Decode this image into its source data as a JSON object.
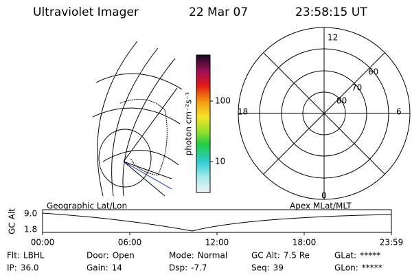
{
  "header": {
    "instrument": "Ultraviolet Imager",
    "date": "22 Mar 07",
    "time": "23:58:15 UT"
  },
  "colorbar": {
    "label": "photon cm⁻²s⁻¹",
    "ticks": [
      "100",
      "10"
    ]
  },
  "polar": {
    "mlt_labels": [
      "12",
      "18",
      "6",
      "0"
    ],
    "mlat_labels": [
      "60",
      "70",
      "80"
    ]
  },
  "plot": {
    "left_label": "Geographic Lat/Lon",
    "right_label": "Apex MLat/MLT",
    "y_label": "GC Alt",
    "y_ticks": [
      "9.0",
      "1.8"
    ],
    "x_ticks": [
      "00:00",
      "06:00",
      "12:00",
      "18:00",
      "23:59"
    ]
  },
  "footer": {
    "rows": [
      [
        {
          "label": "Flt:",
          "value": "LBHL"
        },
        {
          "label": "Door:",
          "value": "Open"
        },
        {
          "label": "Mode:",
          "value": "Normal"
        },
        {
          "label": "GC Alt:",
          "value": "7.5 Re"
        },
        {
          "label": "GLat:",
          "value": "*****"
        }
      ],
      [
        {
          "label": "IP:",
          "value": "36.0"
        },
        {
          "label": "Gain:",
          "value": "14"
        },
        {
          "label": "Dsp:",
          "value": "-7.7"
        },
        {
          "label": "Seq:",
          "value": "39"
        },
        {
          "label": "GLon:",
          "value": "*****"
        }
      ]
    ]
  }
}
